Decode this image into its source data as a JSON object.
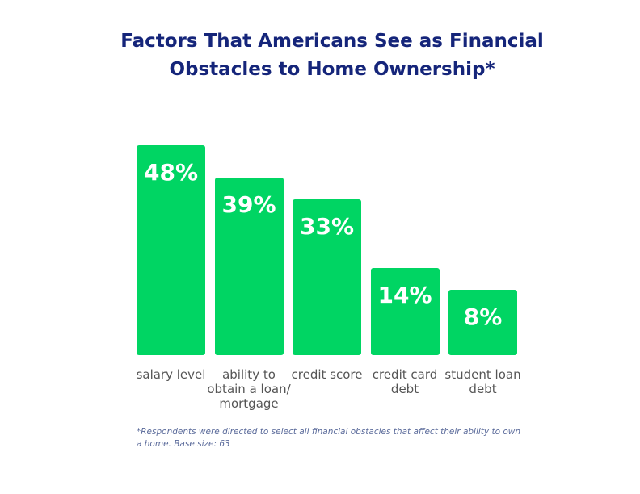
{
  "chart_data": {
    "type": "bar",
    "title": "Factors That Americans See as Financial Obstacles to Home Ownership*",
    "categories": [
      "salary level",
      "ability to obtain a loan/ mortgage",
      "credit score",
      "credit card debt",
      "student loan debt"
    ],
    "values": [
      48,
      39,
      33,
      14,
      8
    ],
    "value_labels": [
      "48%",
      "39%",
      "33%",
      "14%",
      "8%"
    ],
    "color": "#00d563",
    "footnote": "*Respondents were directed to select all financial obstacles that affect their ability to own a home. Base size: 63"
  }
}
